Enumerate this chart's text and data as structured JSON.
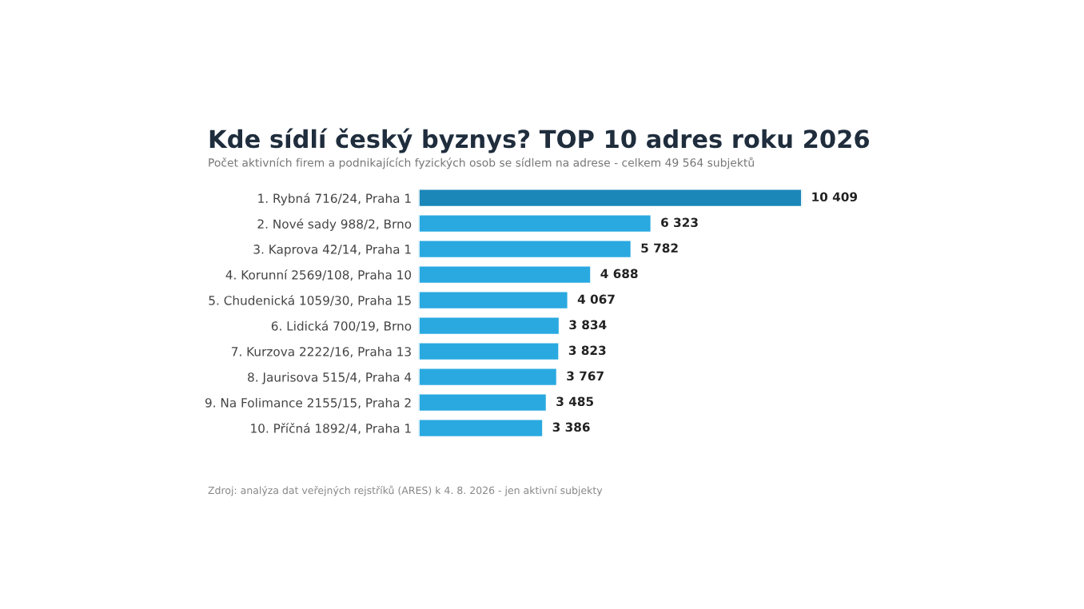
{
  "chart_data": {
    "type": "bar",
    "orientation": "horizontal",
    "title": "Kde sídlí český byznys? TOP 10 adres roku 2026",
    "subtitle": "Počet aktivních firem a podnikajících fyzických osob se sídlem na adrese - celkem 49 564 subjektů",
    "categories": [
      "1. Rybná 716/24, Praha 1",
      "2. Nové sady 988/2, Brno",
      "3. Kaprova 42/14, Praha 1",
      "4. Korunní 2569/108, Praha 10",
      "5. Chudenická 1059/30, Praha 15",
      "6. Lidická 700/19, Brno",
      "7. Kurzova 2222/16, Praha 13",
      "8. Jaurisova 515/4, Praha 4",
      "9. Na Folimance 2155/15, Praha 2",
      "10. Příčná 1892/4, Praha 1"
    ],
    "values": [
      10409,
      6323,
      5782,
      4688,
      4067,
      3834,
      3823,
      3767,
      3485,
      3386
    ],
    "colors": [
      "#1b87b9",
      "#29a9e0",
      "#29a9e0",
      "#29a9e0",
      "#29a9e0",
      "#29a9e0",
      "#29a9e0",
      "#29a9e0",
      "#29a9e0",
      "#29a9e0"
    ],
    "value_labels": [
      "10 409",
      "6 323",
      "5 782",
      "4 688",
      "4 067",
      "3 834",
      "3 823",
      "3 767",
      "3 485",
      "3 386"
    ],
    "annotations": [
      "Zdroj: analýza dat veřejných rejstříků (ARES) k 4. 8. 2026 - jen aktivní subjekty"
    ],
    "grid": false,
    "legend": false,
    "tick_labels": "y"
  }
}
